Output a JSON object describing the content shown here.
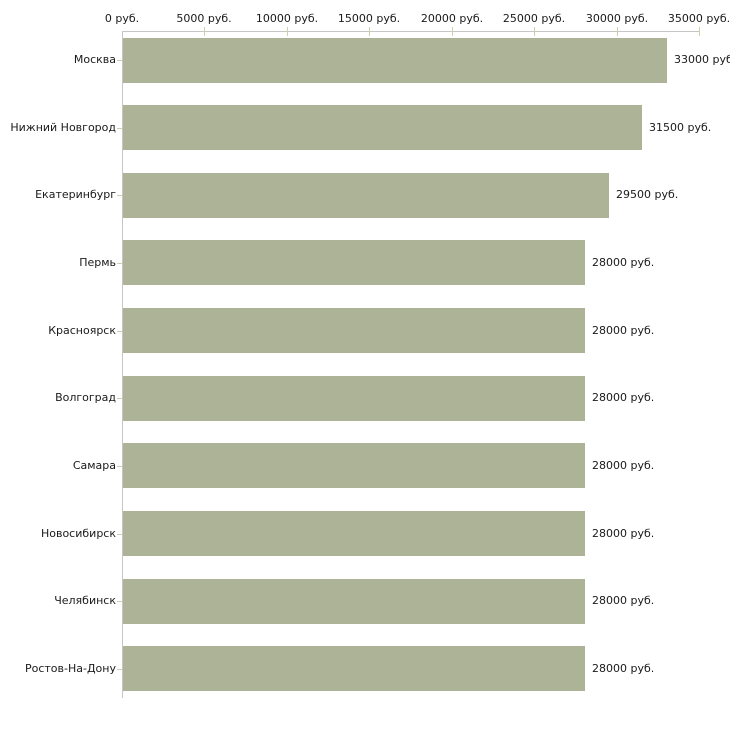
{
  "chart_data": {
    "type": "bar",
    "orientation": "horizontal",
    "title": "",
    "categories": [
      "Москва",
      "Нижний Новгород",
      "Екатеринбург",
      "Пермь",
      "Красноярск",
      "Волгоград",
      "Самара",
      "Новосибирск",
      "Челябинск",
      "Ростов-На-Дону"
    ],
    "values": [
      33000,
      31500,
      29500,
      28000,
      28000,
      28000,
      28000,
      28000,
      28000,
      28000
    ],
    "value_labels": [
      "33000 руб",
      "31500 руб.",
      "29500 руб.",
      "28000 руб.",
      "28000 руб.",
      "28000 руб.",
      "28000 руб.",
      "28000 руб.",
      "28000 руб.",
      "28000 руб."
    ],
    "xlabel": "",
    "ylabel": "",
    "x_axis": {
      "position": "top",
      "min": 0,
      "max": 35000,
      "ticks": [
        0,
        5000,
        10000,
        15000,
        20000,
        25000,
        30000,
        35000
      ],
      "tick_labels": [
        "0 руб.",
        "5000 руб.",
        "10000 руб.",
        "15000 руб.",
        "20000 руб.",
        "25000 руб.",
        "30000 руб.",
        "35000 руб."
      ]
    },
    "grid": false,
    "legend": false,
    "colors": {
      "bar": "#adb397",
      "axis_line": "#c6c6c6",
      "axis_tick": "#cfcfa8",
      "category_tick": "#ccccb8",
      "text": "#1a1a1a",
      "background": "#ffffff"
    }
  }
}
